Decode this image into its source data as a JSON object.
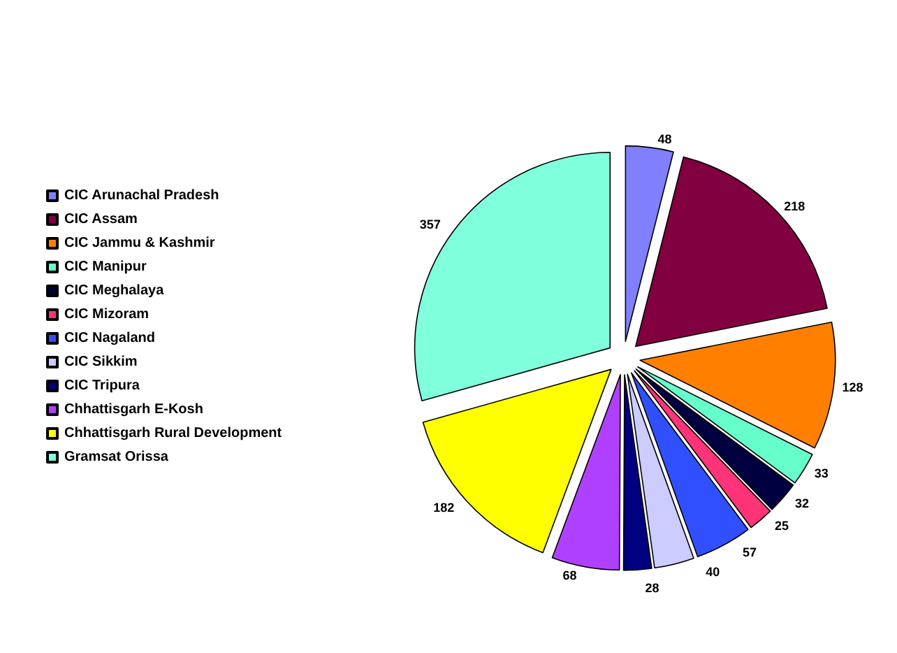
{
  "chart_data": {
    "type": "pie",
    "categories": [
      "CIC Arunachal Pradesh",
      "CIC Assam",
      "CIC Jammu & Kashmir",
      "CIC Manipur",
      "CIC Meghalaya",
      "CIC Mizoram",
      "CIC Nagaland",
      "CIC Sikkim",
      "CIC Tripura",
      "Chhattisgarh E-Kosh",
      "Chhattisgarh Rural Development",
      "Gramsat Orissa"
    ],
    "values": [
      48,
      218,
      128,
      33,
      32,
      25,
      57,
      40,
      28,
      68,
      182,
      357
    ],
    "colors": [
      "#8080ff",
      "#800040",
      "#ff8000",
      "#66ffcc",
      "#000040",
      "#ff3377",
      "#3050ff",
      "#ccccff",
      "#000080",
      "#b040ff",
      "#ffff00",
      "#80ffdd"
    ],
    "data_labels": true,
    "legend": "left"
  }
}
